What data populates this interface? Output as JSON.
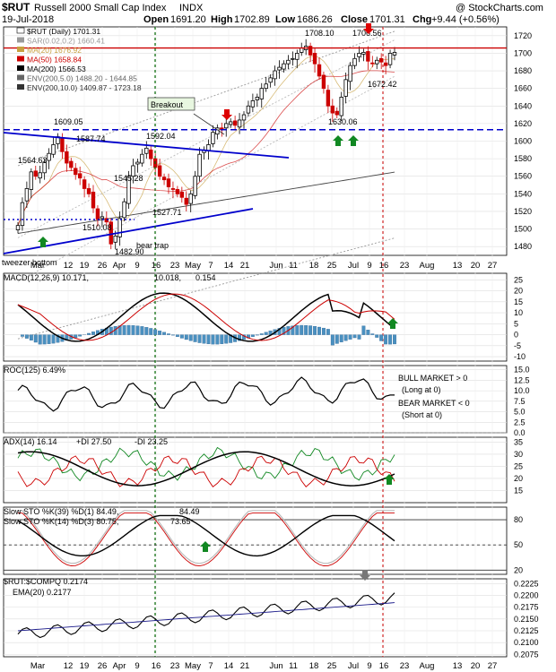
{
  "header": {
    "symbol": "$RUT",
    "name": "Russell 2000 Small Cap Index",
    "exchange": "INDX",
    "watermark": "@ StockCharts.com",
    "date": "19-Jul-2018",
    "open_label": "Open",
    "open": "1691.20",
    "high_label": "High",
    "high": "1702.89",
    "low_label": "Low",
    "low": "1686.26",
    "close_label": "Close",
    "close": "1701.31",
    "chg_label": "Chg",
    "chg": "+9.44 (+0.56%)"
  },
  "price_legend": [
    {
      "text": "$RUT (Daily) 1701.31",
      "color": "#000000"
    },
    {
      "text": "SAR(0.02,0.2) 1660.41",
      "color": "#999999"
    },
    {
      "text": "MA(20) 1676.92",
      "color": "#c8a040"
    },
    {
      "text": "MA(50) 1658.84",
      "color": "#cc0000"
    },
    {
      "text": "MA(200) 1566.53",
      "color": "#000000"
    },
    {
      "text": "ENV(200,5.0) 1488.20 - 1644.85",
      "color": "#666666"
    },
    {
      "text": "ENV(200,10.0) 1409.87 - 1723.18",
      "color": "#333333"
    }
  ],
  "annotations": {
    "breakout": "Breakout",
    "bear_trap": "bear trap",
    "tweezer": "tweezer bottom",
    "bull_market": "BULL MARKET > 0",
    "long_at_0": "(Long at 0)",
    "bear_market": "BEAR MARKET < 0",
    "short_at_0": "(Short at 0)"
  },
  "colors": {
    "up": "#000000",
    "down": "#cc0000",
    "resistance": "#cc0000",
    "support": "#0000cc",
    "trend": "#0000cc",
    "vline_green": "#006600",
    "vline_red": "#cc0000",
    "arrow_green": "#118822",
    "arrow_red": "#dd0000",
    "macd_hist": "#4a90c0"
  },
  "panels": {
    "macd": {
      "label": "MACD(12,26,9) 10.171,",
      "signal": "10.018,",
      "hist": "0.154"
    },
    "roc": {
      "label": "ROC(125) 6.49%"
    },
    "adx": {
      "label": "ADX(14) 16.14",
      "pdi": "+DI 27.50",
      "mdi": "-DI 23.25"
    },
    "sto1": {
      "label": "Slow STO %K(39) %D(1) 84.49,",
      "val": "84.49"
    },
    "sto2": {
      "label": "Slow STO %K(14) %D(3) 80.75,",
      "val": "73.65"
    },
    "rel": {
      "label": "$RUT:$COMPQ 0.2174",
      "ema": "EMA(20) 0.2177"
    }
  },
  "x_axis_labels": [
    "Mar",
    "12",
    "19",
    "26",
    "Apr",
    "9",
    "16",
    "23",
    "May",
    "7",
    "14",
    "21",
    "Jun",
    "11",
    "18",
    "25",
    "Jul",
    "9",
    "16",
    "23",
    "Aug",
    "13",
    "20",
    "27"
  ],
  "chart_data": [
    {
      "type": "line",
      "title": "$RUT Russell 2000 Small Cap Index (Daily)",
      "ylim": [
        1470,
        1730
      ],
      "y_ticks": [
        "1720",
        "1700",
        "1680",
        "1660",
        "1640",
        "1620",
        "1600",
        "1580",
        "1560",
        "1540",
        "1520",
        "1500",
        "1480"
      ],
      "closes": [
        1504,
        1530,
        1546,
        1565,
        1560,
        1564,
        1576,
        1586,
        1596,
        1605,
        1588,
        1575,
        1570,
        1562,
        1558,
        1546,
        1540,
        1524,
        1511,
        1514,
        1508,
        1483,
        1492,
        1512,
        1531,
        1560,
        1572,
        1576,
        1585,
        1592,
        1580,
        1570,
        1560,
        1556,
        1548,
        1545,
        1540,
        1536,
        1528,
        1540,
        1560,
        1585,
        1590,
        1596,
        1610,
        1615,
        1613,
        1620,
        1622,
        1618,
        1624,
        1630,
        1640,
        1646,
        1650,
        1660,
        1665,
        1672,
        1680,
        1684,
        1688,
        1692,
        1694,
        1700,
        1706,
        1708,
        1698,
        1688,
        1674,
        1660,
        1640,
        1632,
        1630,
        1650,
        1670,
        1686,
        1694,
        1700,
        1701,
        1691,
        1688,
        1692,
        1690,
        1686,
        1700,
        1701
      ],
      "labels": [
        "1609.05",
        "1587.74",
        "1564.63",
        "1592.04",
        "1545.28",
        "1510.08",
        "1527.71",
        "1482.90",
        "1708.10",
        "1706.56",
        "1672.42",
        "1630.06"
      ],
      "resistance": 1706,
      "support": 1613
    },
    {
      "type": "line",
      "title": "MACD(12,26,9)",
      "ylim": [
        -12,
        28
      ],
      "y_ticks": [
        "25",
        "20",
        "15",
        "10",
        "5",
        "0",
        "-5",
        "-10"
      ]
    },
    {
      "type": "line",
      "title": "ROC(125)",
      "ylim": [
        0,
        16
      ],
      "y_ticks": [
        "15.0",
        "12.5",
        "10.0",
        "7.5",
        "5.0",
        "2.5",
        "0.0"
      ]
    },
    {
      "type": "line",
      "title": "ADX(14)",
      "ylim": [
        10,
        37
      ],
      "y_ticks": [
        "35",
        "30",
        "25",
        "20",
        "15"
      ]
    },
    {
      "type": "line",
      "title": "Slow STO",
      "ylim": [
        15,
        95
      ],
      "y_ticks": [
        "80",
        "50",
        "20"
      ]
    },
    {
      "type": "line",
      "title": "$RUT:$COMPQ",
      "ylim": [
        0.207,
        0.2235
      ],
      "y_ticks": [
        "0.2225",
        "0.2200",
        "0.2175",
        "0.2150",
        "0.2125",
        "0.2100",
        "0.2075"
      ]
    }
  ]
}
